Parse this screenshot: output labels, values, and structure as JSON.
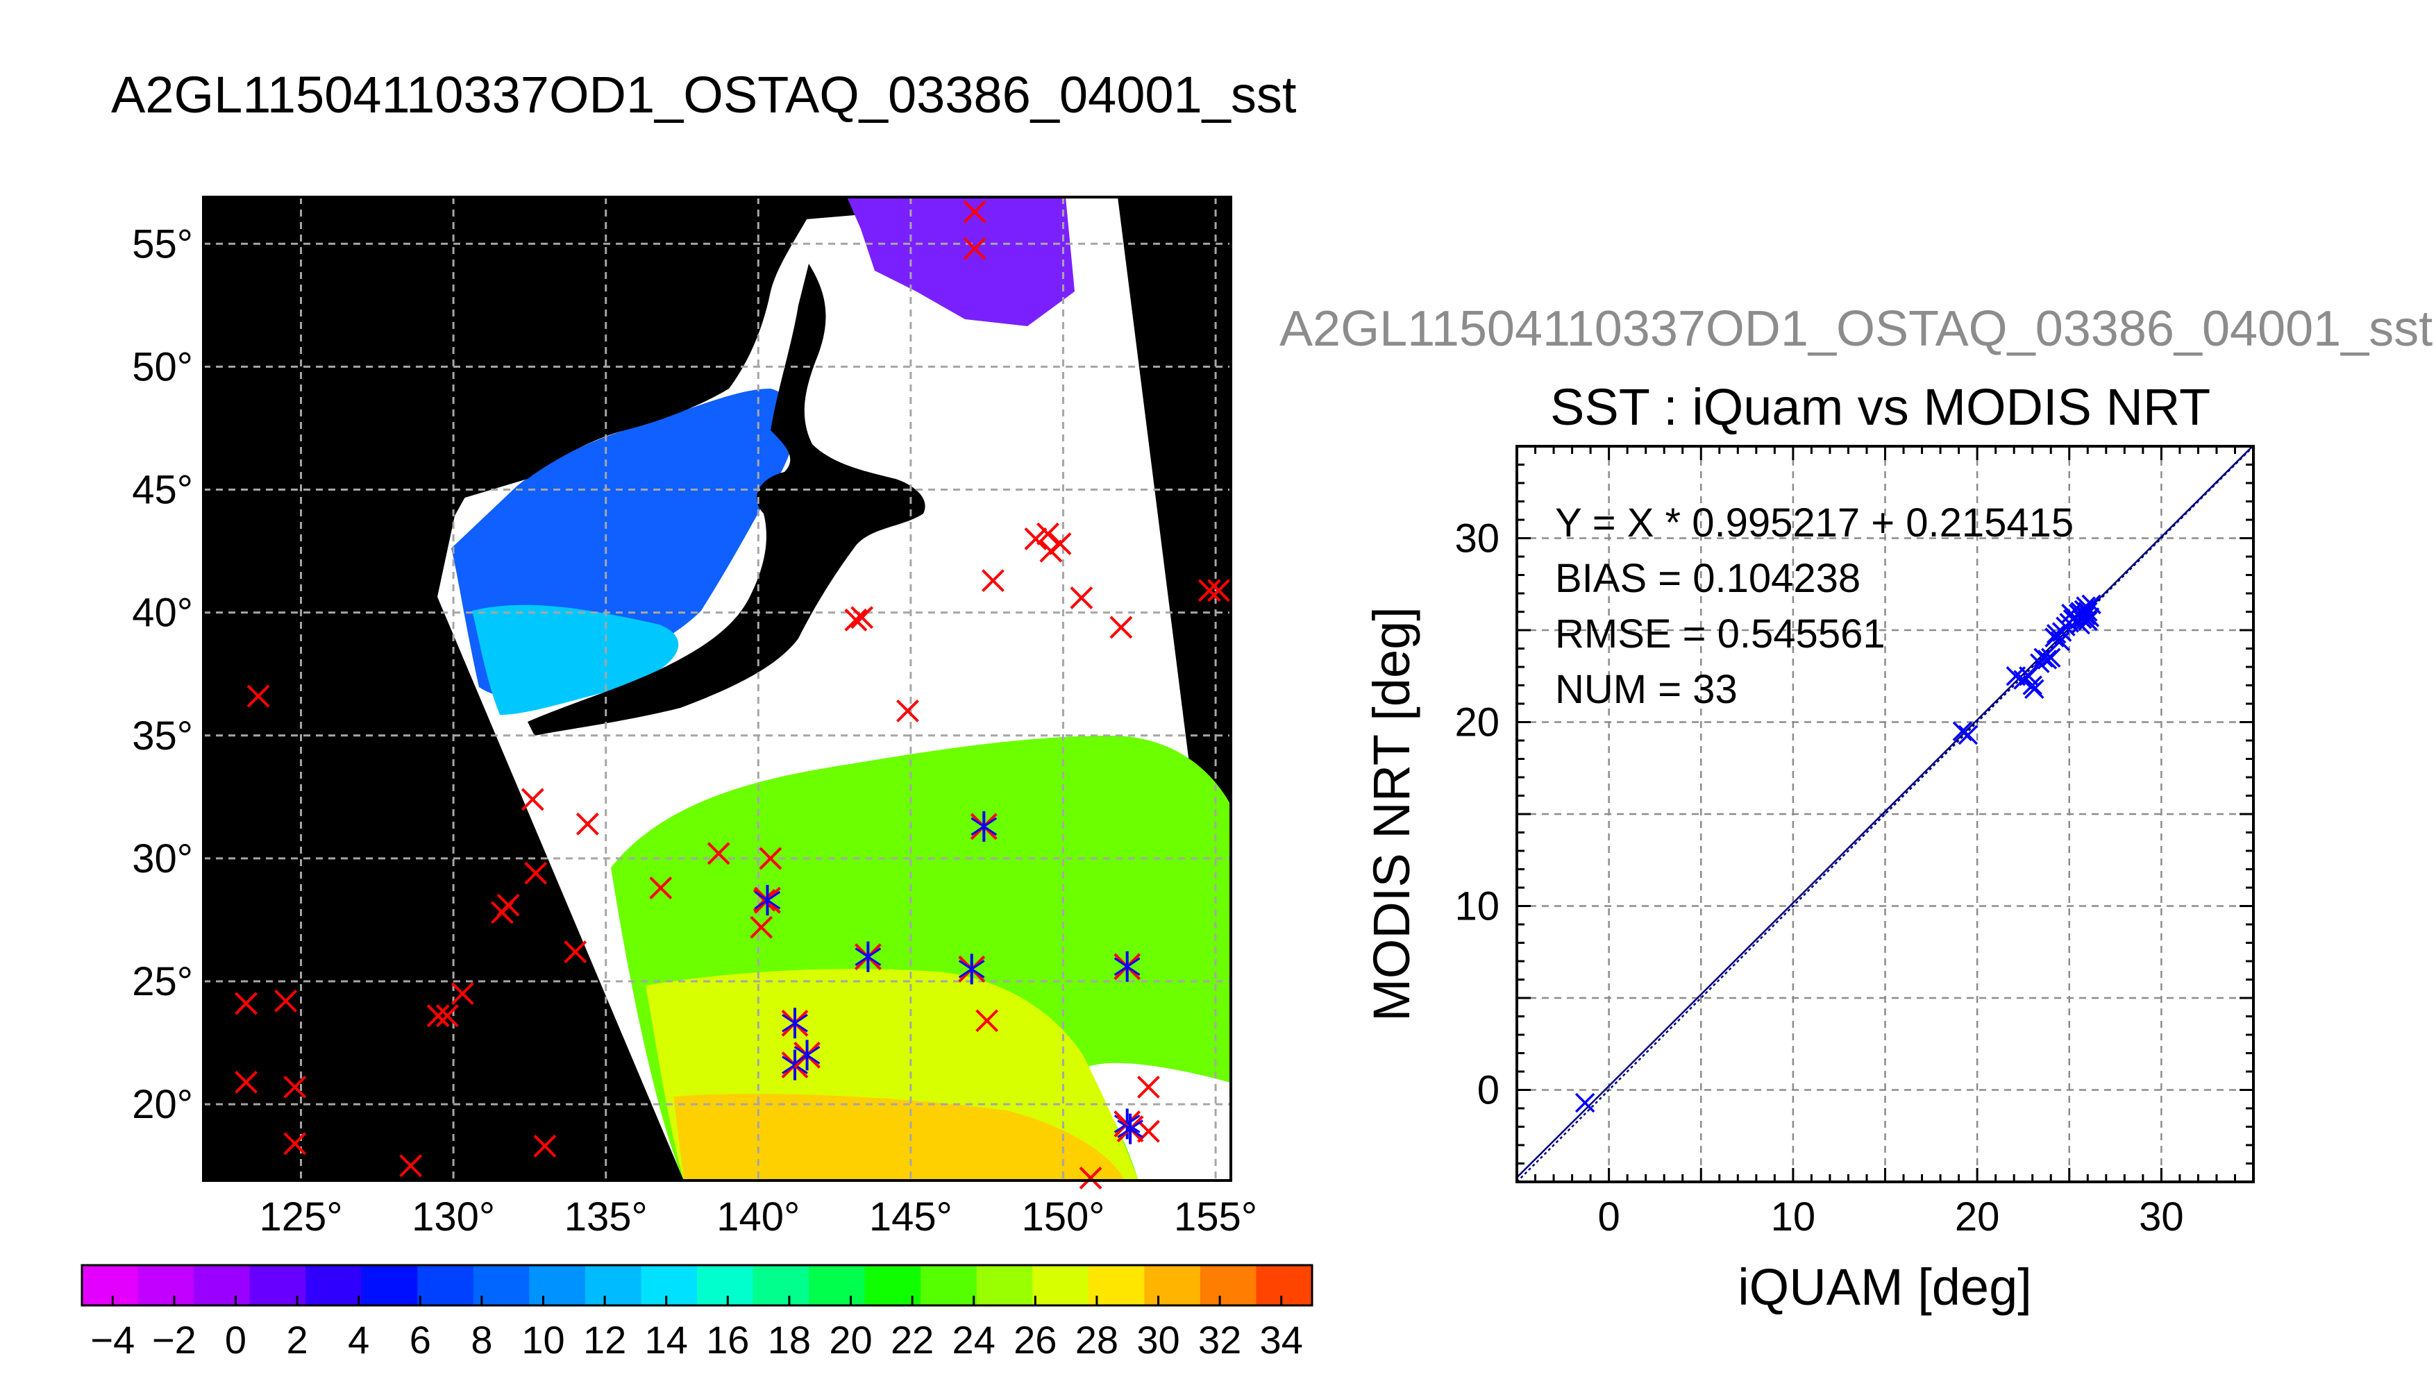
{
  "title": "A2GL11504110337OD1_OSTAQ_03386_04001_sst",
  "colors": {
    "land": "#000000",
    "cloud": "#ffffff",
    "marker_outside_scatter": "#ff0000",
    "marker_in_scatter": "#0000ff",
    "gridline": "#a6a6a6",
    "fit_line": "#000080"
  },
  "chart_data": [
    {
      "type": "map",
      "title": "A2GL11504110337OD1_OSTAQ_03386_04001_sst",
      "x_ticks": [
        "125°",
        "130°",
        "135°",
        "140°",
        "145°",
        "150°",
        "155°"
      ],
      "y_ticks": [
        "20°",
        "25°",
        "30°",
        "35°",
        "40°",
        "45°",
        "50°",
        "55°"
      ],
      "x_tick_values": [
        125,
        130,
        135,
        140,
        145,
        150,
        155
      ],
      "y_tick_values": [
        20,
        25,
        30,
        35,
        40,
        45,
        50,
        55
      ],
      "xlim": [
        121.8,
        155.5
      ],
      "ylim": [
        16.9,
        56.9
      ],
      "grid": true,
      "marker_types": [
        "red x: in-situ match-up",
        "blue asterisk: match-up used in scatter"
      ],
      "red_markers": [
        [
          123.2,
          24.1
        ],
        [
          124.5,
          24.2
        ],
        [
          123.2,
          20.9
        ],
        [
          124.8,
          20.7
        ],
        [
          124.8,
          18.4
        ],
        [
          123.6,
          36.6
        ],
        [
          128.6,
          17.5
        ],
        [
          129.5,
          23.6
        ],
        [
          129.8,
          23.6
        ],
        [
          130.3,
          24.5
        ],
        [
          131.6,
          27.8
        ],
        [
          131.8,
          28.1
        ],
        [
          133.0,
          18.3
        ],
        [
          132.7,
          29.4
        ],
        [
          134.0,
          26.2
        ],
        [
          132.6,
          32.4
        ],
        [
          134.4,
          31.4
        ],
        [
          136.8,
          28.8
        ],
        [
          138.7,
          30.2
        ],
        [
          140.4,
          30.0
        ],
        [
          140.1,
          27.2
        ],
        [
          140.2,
          28.3
        ],
        [
          143.2,
          39.7
        ],
        [
          143.4,
          39.8
        ],
        [
          144.9,
          36.0
        ],
        [
          147.5,
          23.4
        ],
        [
          147.7,
          41.3
        ],
        [
          149.1,
          43.0
        ],
        [
          149.5,
          43.2
        ],
        [
          149.6,
          42.5
        ],
        [
          149.9,
          42.8
        ],
        [
          150.6,
          40.6
        ],
        [
          151.9,
          39.4
        ],
        [
          152.8,
          20.7
        ],
        [
          154.8,
          40.9
        ],
        [
          155.1,
          40.9
        ],
        [
          147.1,
          56.3
        ],
        [
          147.1,
          54.8
        ],
        [
          150.9,
          17.0
        ],
        [
          152.8,
          18.9
        ]
      ],
      "blue_markers": [
        [
          140.3,
          28.3
        ],
        [
          141.2,
          23.3
        ],
        [
          141.2,
          21.6
        ],
        [
          141.6,
          22.0
        ],
        [
          143.6,
          26.0
        ],
        [
          147.0,
          25.5
        ],
        [
          147.4,
          31.3
        ],
        [
          152.1,
          25.6
        ],
        [
          152.1,
          19.2
        ],
        [
          152.2,
          19.0
        ]
      ],
      "colorbar": {
        "min": -5,
        "max": 35,
        "step": 2,
        "tick_labels": [
          "−4",
          "−2",
          "0",
          "2",
          "4",
          "6",
          "8",
          "10",
          "12",
          "14",
          "16",
          "18",
          "20",
          "22",
          "24",
          "26",
          "28",
          "30",
          "32",
          "34"
        ],
        "tick_values": [
          -4,
          -2,
          0,
          2,
          4,
          6,
          8,
          10,
          12,
          14,
          16,
          18,
          20,
          22,
          24,
          26,
          28,
          30,
          32,
          34
        ],
        "colors": [
          "#e400ff",
          "#c100ff",
          "#9a00ff",
          "#6800ff",
          "#3000ff",
          "#0010ff",
          "#0040ff",
          "#0066ff",
          "#0092ff",
          "#00bbff",
          "#00e0ff",
          "#00ffcc",
          "#00ff8c",
          "#00ff4c",
          "#10ff00",
          "#55ff00",
          "#9aff00",
          "#d8ff00",
          "#ffe600",
          "#ffb400",
          "#ff7d00",
          "#ff4400"
        ]
      }
    },
    {
      "type": "scatter",
      "file_title": "A2GL11504110337OD1_OSTAQ_03386_04001_sst",
      "title": "SST : iQuam vs MODIS NRT",
      "xlabel": "iQUAM [deg]",
      "ylabel": "MODIS NRT [deg]",
      "xlim": [
        -5,
        35
      ],
      "ylim": [
        -5,
        35
      ],
      "x_ticks": [
        0,
        10,
        20,
        30
      ],
      "y_ticks": [
        0,
        10,
        20,
        30
      ],
      "grid": true,
      "stats": {
        "fit_label": "Y = X * 0.995217 + 0.215415",
        "bias_label": "BIAS = 0.104238",
        "rmse_label": "RMSE = 0.545561",
        "num_label": "NUM = 33"
      },
      "fit": {
        "slope": 0.995217,
        "intercept": 0.215415
      },
      "points": [
        [
          -1.3,
          -0.7
        ],
        [
          19.2,
          19.5
        ],
        [
          19.5,
          19.3
        ],
        [
          22.1,
          22.5
        ],
        [
          22.5,
          22.3
        ],
        [
          22.8,
          22.5
        ],
        [
          23.0,
          22.0
        ],
        [
          23.1,
          21.8
        ],
        [
          23.4,
          23.2
        ],
        [
          23.6,
          23.5
        ],
        [
          24.0,
          23.5
        ],
        [
          24.2,
          24.6
        ],
        [
          24.3,
          24.8
        ],
        [
          24.5,
          24.4
        ],
        [
          24.8,
          25.2
        ],
        [
          25.0,
          25.4
        ],
        [
          25.2,
          25.6
        ],
        [
          25.3,
          25.7
        ],
        [
          25.4,
          25.5
        ],
        [
          25.5,
          25.9
        ],
        [
          25.6,
          26.0
        ],
        [
          25.7,
          25.6
        ],
        [
          25.8,
          26.1
        ],
        [
          25.9,
          25.8
        ],
        [
          25.9,
          26.3
        ],
        [
          26.0,
          26.0
        ],
        [
          26.1,
          25.7
        ],
        [
          26.2,
          26.4
        ],
        [
          25.6,
          25.3
        ],
        [
          25.1,
          25.9
        ],
        [
          24.6,
          24.9
        ],
        [
          23.8,
          23.4
        ],
        [
          26.0,
          25.5
        ]
      ]
    }
  ]
}
